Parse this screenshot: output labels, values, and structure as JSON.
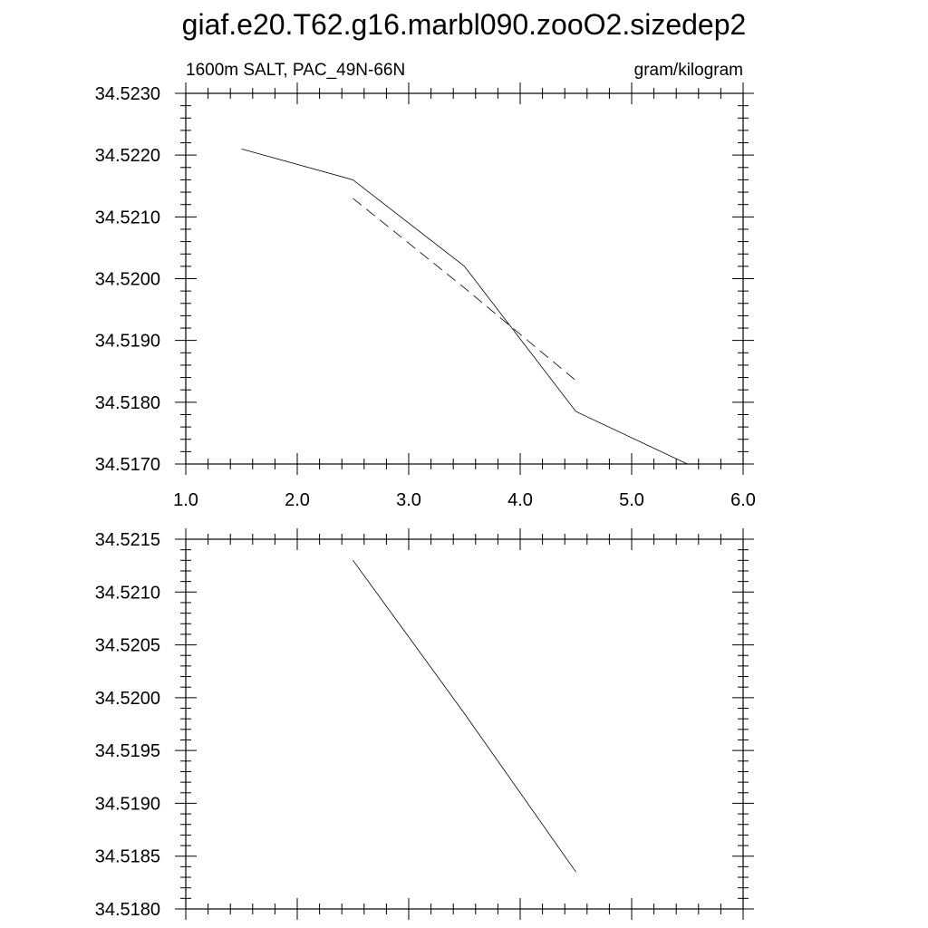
{
  "figure_title": "giaf.e20.T62.g16.marbl090.zooO2.sizedep2",
  "chart_data": [
    {
      "type": "line",
      "subtitle_left": "1600m SALT, PAC_49N-66N",
      "subtitle_right": "gram/kilogram",
      "xlim": [
        1.0,
        6.0
      ],
      "ylim": [
        34.517,
        34.523
      ],
      "x_ticks": [
        1.0,
        2.0,
        3.0,
        4.0,
        5.0,
        6.0
      ],
      "x_tick_labels": [
        "1.0",
        "2.0",
        "3.0",
        "4.0",
        "5.0",
        "6.0"
      ],
      "y_ticks": [
        34.517,
        34.518,
        34.519,
        34.52,
        34.521,
        34.522,
        34.523
      ],
      "y_tick_labels": [
        "34.5170",
        "34.5180",
        "34.5190",
        "34.5200",
        "34.5210",
        "34.5220",
        "34.5230"
      ],
      "x_minor_step": 0.2,
      "y_minor_step": 0.0002,
      "grid": false,
      "series": [
        {
          "style": "solid",
          "x": [
            1.5,
            2.5,
            3.5,
            4.5,
            5.5
          ],
          "y": [
            34.5221,
            34.5216,
            34.5202,
            34.51785,
            34.517
          ]
        },
        {
          "style": "dashed",
          "x": [
            2.5,
            3.5,
            4.5
          ],
          "y": [
            34.5213,
            34.51985,
            34.51835
          ]
        }
      ]
    },
    {
      "type": "line",
      "xlim": [
        1.0,
        6.0
      ],
      "ylim": [
        34.518,
        34.5215
      ],
      "x_ticks": [
        1.0,
        2.0,
        3.0,
        4.0,
        5.0,
        6.0
      ],
      "x_tick_labels": [],
      "y_ticks": [
        34.518,
        34.5185,
        34.519,
        34.5195,
        34.52,
        34.5205,
        34.521,
        34.5215
      ],
      "y_tick_labels": [
        "34.5180",
        "34.5185",
        "34.5190",
        "34.5195",
        "34.5200",
        "34.5205",
        "34.5210",
        "34.5215"
      ],
      "x_minor_step": 0.2,
      "y_minor_step": 0.0001,
      "grid": false,
      "series": [
        {
          "style": "solid",
          "x": [
            2.5,
            3.5,
            4.5
          ],
          "y": [
            34.5213,
            34.51985,
            34.51835
          ]
        }
      ]
    }
  ]
}
